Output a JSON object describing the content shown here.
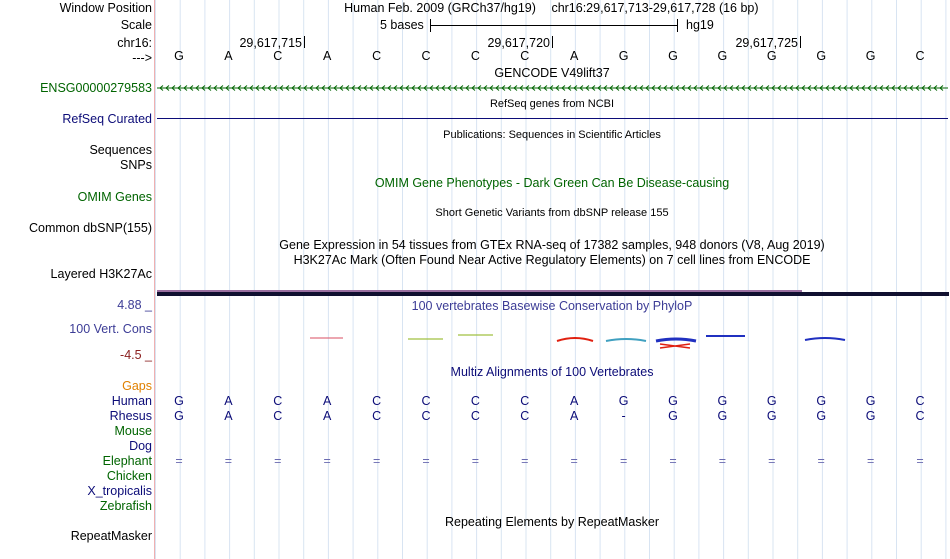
{
  "browser": {
    "assembly": "Human Feb. 2009 (GRCh37/hg19)",
    "position_text": "chr16:29,617,713-29,617,728 (16 bp)",
    "scale_label": "5 bases",
    "db": "hg19",
    "chrom_label": "chr16:",
    "arrow_label": "--->",
    "ruler_ticks": [
      "29,617,715",
      "29,617,720",
      "29,617,725"
    ]
  },
  "sequence": [
    "G",
    "A",
    "C",
    "A",
    "C",
    "C",
    "C",
    "C",
    "A",
    "G",
    "G",
    "G",
    "G",
    "G",
    "G",
    "C"
  ],
  "rhesus": [
    "G",
    "A",
    "C",
    "A",
    "C",
    "C",
    "C",
    "C",
    "A",
    "-",
    "G",
    "G",
    "G",
    "G",
    "G",
    "C"
  ],
  "elephant": [
    "=",
    "=",
    "=",
    "=",
    "=",
    "=",
    "=",
    "=",
    "=",
    "=",
    "=",
    "=",
    "=",
    "=",
    "=",
    "="
  ],
  "labels": {
    "window_position": "Window Position",
    "scale": "Scale",
    "gencode_gene": "ENSG00000279583",
    "refseq": "RefSeq Curated",
    "sequences": "Sequences",
    "snps": "SNPs",
    "omim": "OMIM Genes",
    "dbsnp": "Common dbSNP(155)",
    "h3k27ac": "Layered H3K27Ac",
    "cons_max": "4.88 _",
    "cons_label": "100 Vert. Cons",
    "cons_min": "-4.5 _",
    "gaps": "Gaps",
    "species": [
      "Human",
      "Rhesus",
      "Mouse",
      "Dog",
      "Elephant",
      "Chicken",
      "X_tropicalis",
      "Zebrafish"
    ],
    "repeatmasker": "RepeatMasker"
  },
  "tracks": {
    "gencode": "GENCODE V49lift37",
    "refseq": "RefSeq genes from NCBI",
    "publications": "Publications: Sequences in Scientific Articles",
    "omim": "OMIM Gene Phenotypes - Dark Green Can Be Disease-causing",
    "dbsnp": "Short Genetic Variants from dbSNP release 155",
    "gtex": "Gene Expression in 54 tissues from GTEx RNA-seq of 17382 samples, 948 donors (V8, Aug 2019)",
    "h3k27ac": "H3K27Ac Mark (Often Found Near Active Regulatory Elements) on 7 cell lines from ENCODE",
    "conservation": "100 vertebrates Basewise Conservation by PhyloP",
    "multiz": "Multiz Alignments of 100 Vertebrates",
    "repeatmasker": "Repeating Elements by RepeatMasker"
  },
  "colors": {
    "gencode": "#006400",
    "refseq": "#0c0c78",
    "omim": "#006400",
    "conservation": "#3c3c96",
    "cons_min": "#8b2020",
    "gaps": "#e08000",
    "multiz": "#0c0c78",
    "h3k27ac_bar": "#9a6fa0"
  }
}
